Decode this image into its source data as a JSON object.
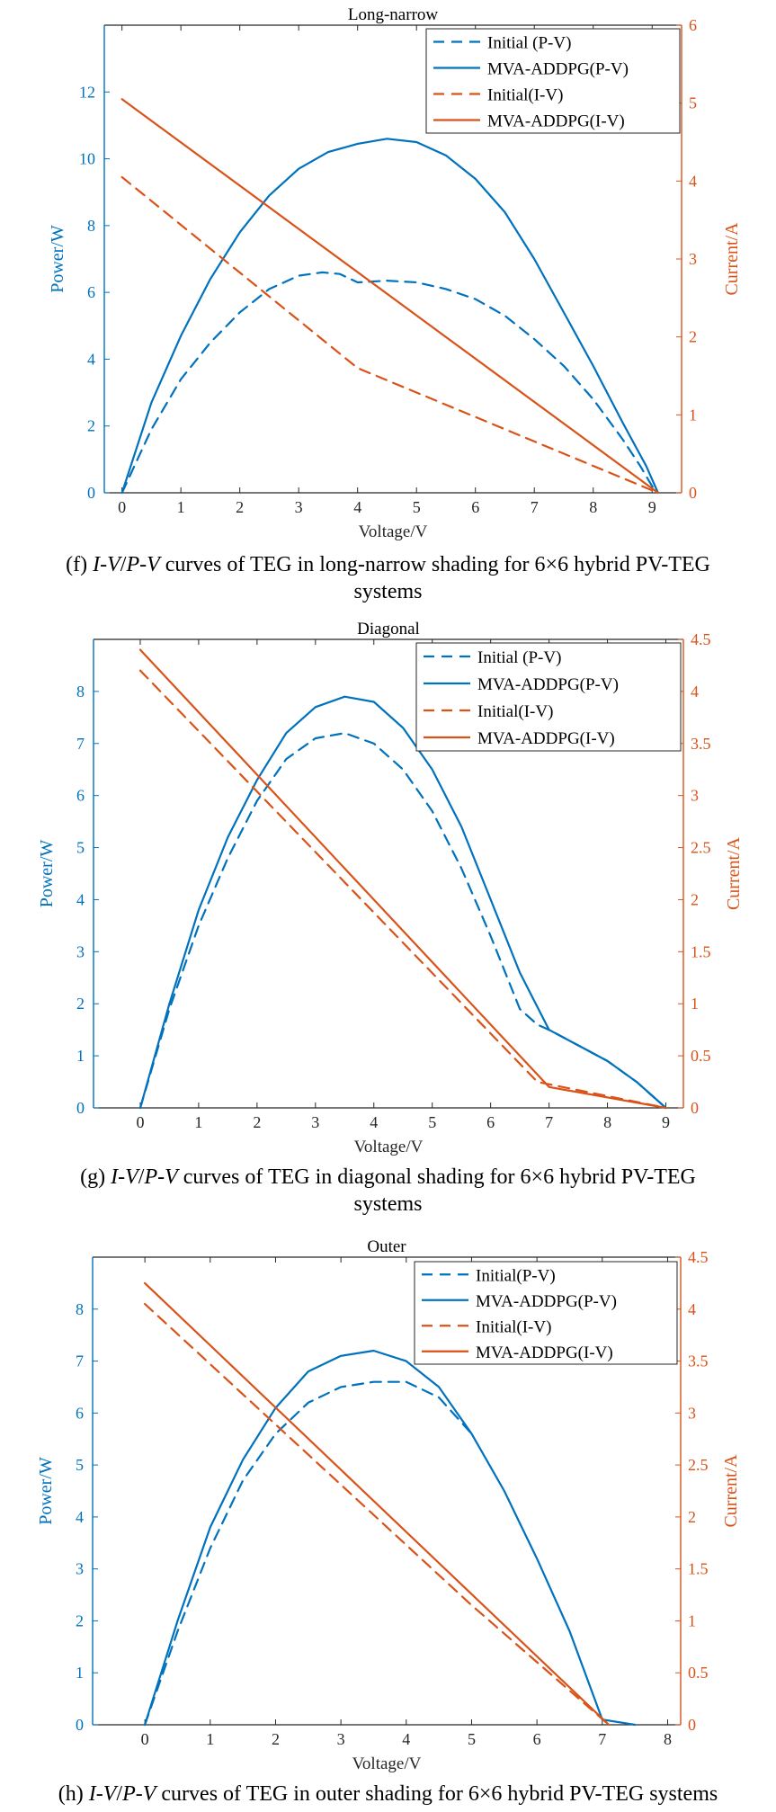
{
  "colors": {
    "blue": "#0072BD",
    "orange": "#D95319",
    "axis": "#262626"
  },
  "captions": [
    {
      "label": "(f)",
      "iv": "I-V",
      "sep": "/",
      "pv": "P-V",
      "rest": " curves of TEG in long-narrow shading for 6×6 hybrid PV-TEG",
      "line2": "systems"
    },
    {
      "label": "(g)",
      "iv": "I-V",
      "sep": "/",
      "pv": "P-V",
      "rest": " curves of TEG in diagonal shading for 6×6 hybrid PV-TEG",
      "line2": "systems"
    },
    {
      "label": "(h)",
      "iv": "I-V",
      "sep": "/",
      "pv": "P-V",
      "rest": " curves of TEG in outer shading for 6×6 hybrid PV-TEG systems",
      "line2": ""
    }
  ],
  "chart_data": [
    {
      "type": "line",
      "title": "Long-narrow",
      "xlabel": "Voltage/V",
      "ylabel": "Power/W",
      "y2label": "Current/A",
      "xlim": [
        -0.3,
        9.5
      ],
      "xticks": [
        0,
        1,
        2,
        3,
        4,
        5,
        6,
        7,
        8,
        9
      ],
      "ylim": [
        0,
        14
      ],
      "yticks": [
        0,
        2,
        4,
        6,
        8,
        10,
        12
      ],
      "y2lim": [
        0,
        6
      ],
      "y2ticks": [
        0,
        1,
        2,
        3,
        4,
        5,
        6
      ],
      "legend_position": "top-right",
      "series": [
        {
          "name": "Initial (P-V)",
          "axis": "left",
          "color": "blue",
          "style": "dashed",
          "x": [
            0,
            0.5,
            1,
            1.5,
            2,
            2.5,
            3,
            3.4,
            3.7,
            4,
            4.5,
            5,
            5.5,
            6,
            6.5,
            7,
            7.5,
            8,
            8.5,
            8.8,
            9,
            9.1
          ],
          "y": [
            0,
            1.9,
            3.4,
            4.5,
            5.4,
            6.1,
            6.5,
            6.6,
            6.55,
            6.3,
            6.35,
            6.3,
            6.1,
            5.8,
            5.3,
            4.6,
            3.8,
            2.8,
            1.6,
            0.8,
            0.2,
            0
          ]
        },
        {
          "name": "MVA-ADDPG(P-V)",
          "axis": "left",
          "color": "blue",
          "style": "solid",
          "x": [
            0,
            0.5,
            1,
            1.5,
            2,
            2.5,
            3,
            3.5,
            4,
            4.5,
            5,
            5.5,
            6,
            6.5,
            7,
            7.5,
            8,
            8.5,
            8.9,
            9.1
          ],
          "y": [
            0,
            2.7,
            4.7,
            6.4,
            7.8,
            8.9,
            9.7,
            10.2,
            10.45,
            10.6,
            10.5,
            10.1,
            9.4,
            8.4,
            7,
            5.4,
            3.8,
            2.1,
            0.8,
            0
          ]
        },
        {
          "name": "Initial(I-V)",
          "axis": "right",
          "color": "orange",
          "style": "dashed",
          "x": [
            0,
            4,
            9.1
          ],
          "y": [
            4.05,
            1.6,
            0
          ]
        },
        {
          "name": "MVA-ADDPG(I-V)",
          "axis": "right",
          "color": "orange",
          "style": "solid",
          "x": [
            0,
            9.1
          ],
          "y": [
            5.05,
            0
          ]
        }
      ]
    },
    {
      "type": "line",
      "title": "Diagonal",
      "xlabel": "Voltage/V",
      "ylabel": "Power/W",
      "y2label": "Current/A",
      "xlim": [
        -0.8,
        9.3
      ],
      "xticks": [
        0,
        1,
        2,
        3,
        4,
        5,
        6,
        7,
        8,
        9
      ],
      "ylim": [
        0,
        9
      ],
      "yticks": [
        0,
        1,
        2,
        3,
        4,
        5,
        6,
        7,
        8
      ],
      "y2lim": [
        0,
        4.5
      ],
      "y2ticks": [
        0,
        0.5,
        1,
        1.5,
        2,
        2.5,
        3,
        3.5,
        4,
        4.5
      ],
      "legend_position": "top-right",
      "series": [
        {
          "name": "Initial (P-V)",
          "axis": "left",
          "color": "blue",
          "style": "dashed",
          "x": [
            0,
            0.5,
            1,
            1.5,
            2,
            2.5,
            3,
            3.5,
            4,
            4.5,
            5,
            5.5,
            6,
            6.5,
            6.8,
            7,
            7.5,
            8,
            8.5,
            9
          ],
          "y": [
            0,
            1.9,
            3.5,
            4.8,
            5.9,
            6.7,
            7.1,
            7.2,
            7,
            6.5,
            5.7,
            4.6,
            3.3,
            1.9,
            1.6,
            1.5,
            1.2,
            0.9,
            0.5,
            0
          ]
        },
        {
          "name": "MVA-ADDPG(P-V)",
          "axis": "left",
          "color": "blue",
          "style": "solid",
          "x": [
            0,
            0.5,
            1,
            1.5,
            2,
            2.5,
            3,
            3.5,
            4,
            4.5,
            5,
            5.5,
            6,
            6.5,
            7,
            7.5,
            8,
            8.5,
            9
          ],
          "y": [
            0,
            2,
            3.8,
            5.2,
            6.3,
            7.2,
            7.7,
            7.9,
            7.8,
            7.3,
            6.5,
            5.4,
            4,
            2.6,
            1.5,
            1.2,
            0.9,
            0.5,
            0
          ]
        },
        {
          "name": "Initial(I-V)",
          "axis": "right",
          "color": "orange",
          "style": "dashed",
          "x": [
            0,
            6.8,
            9
          ],
          "y": [
            4.2,
            0.25,
            0
          ]
        },
        {
          "name": "MVA-ADDPG(I-V)",
          "axis": "right",
          "color": "orange",
          "style": "solid",
          "x": [
            0,
            7,
            9
          ],
          "y": [
            4.4,
            0.2,
            0
          ]
        }
      ]
    },
    {
      "type": "line",
      "title": "Outer",
      "xlabel": "Voltage/V",
      "ylabel": "Power/W",
      "y2label": "Current/A",
      "xlim": [
        -0.8,
        8.2
      ],
      "xticks": [
        0,
        1,
        2,
        3,
        4,
        5,
        6,
        7,
        8
      ],
      "ylim": [
        0,
        9
      ],
      "yticks": [
        0,
        1,
        2,
        3,
        4,
        5,
        6,
        7,
        8
      ],
      "y2lim": [
        0,
        4.5
      ],
      "y2ticks": [
        0,
        0.5,
        1,
        1.5,
        2,
        2.5,
        3,
        3.5,
        4,
        4.5
      ],
      "legend_position": "top-right",
      "series": [
        {
          "name": "Initial(P-V)",
          "axis": "left",
          "color": "blue",
          "style": "dashed",
          "x": [
            0,
            0.5,
            1,
            1.5,
            2,
            2.5,
            3,
            3.5,
            4,
            4.5,
            5
          ],
          "y": [
            0,
            1.8,
            3.4,
            4.7,
            5.6,
            6.2,
            6.5,
            6.6,
            6.6,
            6.3,
            5.6
          ]
        },
        {
          "name": "MVA-ADDPG(P-V)",
          "axis": "left",
          "color": "blue",
          "style": "solid",
          "x": [
            0,
            0.5,
            1,
            1.5,
            2,
            2.5,
            3,
            3.5,
            4,
            4.5,
            5,
            5.5,
            6,
            6.5,
            7,
            7.5
          ],
          "y": [
            0,
            2,
            3.8,
            5.1,
            6.1,
            6.8,
            7.1,
            7.2,
            7,
            6.5,
            5.6,
            4.5,
            3.2,
            1.8,
            0.1,
            0
          ]
        },
        {
          "name": "Initial(I-V)",
          "axis": "right",
          "color": "orange",
          "style": "dashed",
          "x": [
            0,
            5,
            7.1
          ],
          "y": [
            4.05,
            1.15,
            0
          ]
        },
        {
          "name": "MVA-ADDPG(I-V)",
          "axis": "right",
          "color": "orange",
          "style": "solid",
          "x": [
            0,
            7.1
          ],
          "y": [
            4.25,
            0
          ]
        }
      ]
    }
  ]
}
